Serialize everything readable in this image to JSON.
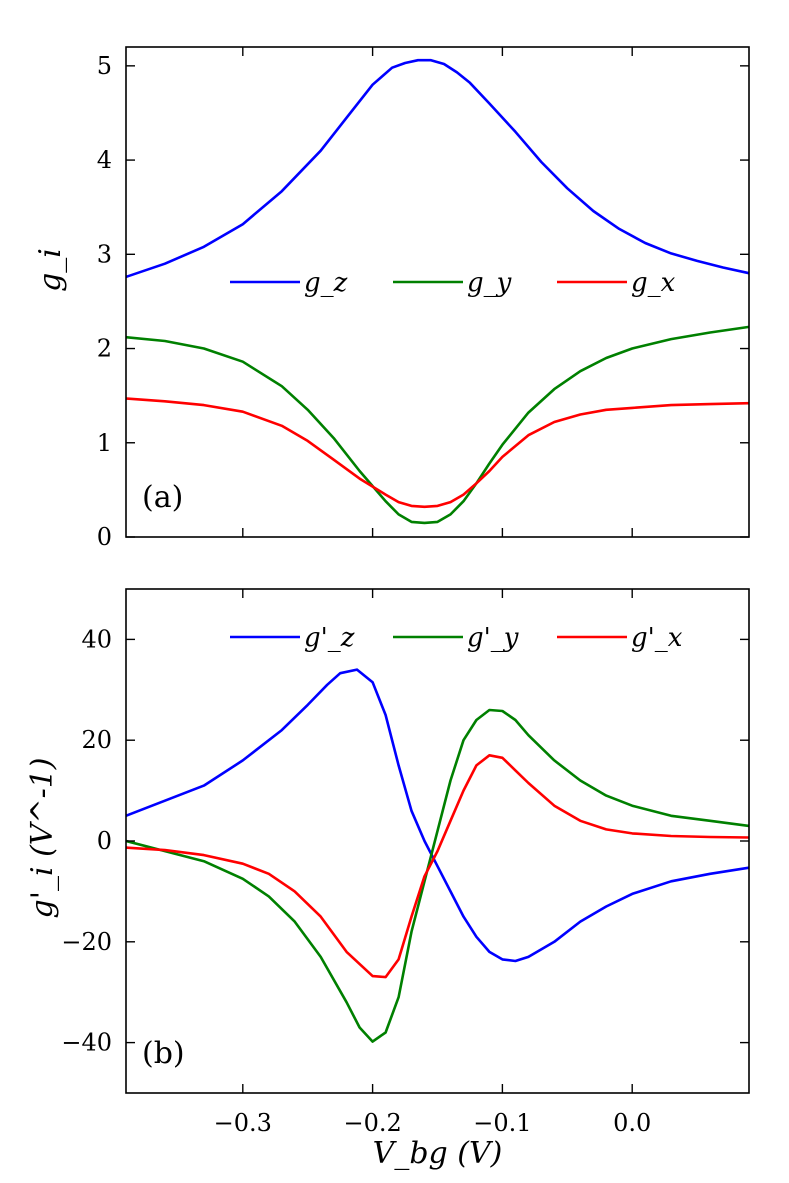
{
  "chart_data": [
    {
      "type": "line",
      "panel_label": "(a)",
      "ylabel": "g_i",
      "xlabel": "",
      "xlim": [
        -0.39,
        0.09
      ],
      "ylim": [
        0,
        5.2
      ],
      "yticks": [
        0,
        1,
        2,
        3,
        4,
        5
      ],
      "ytick_labels": [
        "0",
        "1",
        "2",
        "3",
        "4",
        "5"
      ],
      "xticks": [
        -0.3,
        -0.2,
        -0.1,
        0.0
      ],
      "xtick_labels": [
        "",
        "",
        "",
        ""
      ],
      "grid": false,
      "legend": "upper-center, single row",
      "series": [
        {
          "name": "g_z",
          "color": "#0000ff",
          "x": [
            -0.39,
            -0.36,
            -0.33,
            -0.3,
            -0.27,
            -0.24,
            -0.22,
            -0.2,
            -0.185,
            -0.175,
            -0.165,
            -0.155,
            -0.145,
            -0.135,
            -0.125,
            -0.11,
            -0.09,
            -0.07,
            -0.05,
            -0.03,
            -0.01,
            0.01,
            0.03,
            0.05,
            0.07,
            0.09
          ],
          "y": [
            2.76,
            2.9,
            3.08,
            3.32,
            3.67,
            4.1,
            4.45,
            4.8,
            4.98,
            5.03,
            5.06,
            5.06,
            5.02,
            4.93,
            4.82,
            4.6,
            4.3,
            3.98,
            3.7,
            3.46,
            3.27,
            3.12,
            3.01,
            2.93,
            2.86,
            2.8
          ]
        },
        {
          "name": "g_y",
          "color": "#008000",
          "x": [
            -0.39,
            -0.36,
            -0.33,
            -0.3,
            -0.27,
            -0.25,
            -0.23,
            -0.21,
            -0.19,
            -0.18,
            -0.17,
            -0.16,
            -0.15,
            -0.14,
            -0.13,
            -0.12,
            -0.11,
            -0.1,
            -0.08,
            -0.06,
            -0.04,
            -0.02,
            0.0,
            0.03,
            0.06,
            0.09
          ],
          "y": [
            2.12,
            2.08,
            2.0,
            1.86,
            1.6,
            1.35,
            1.05,
            0.7,
            0.38,
            0.24,
            0.16,
            0.15,
            0.16,
            0.24,
            0.38,
            0.57,
            0.78,
            0.98,
            1.32,
            1.57,
            1.76,
            1.9,
            2.0,
            2.1,
            2.17,
            2.23
          ]
        },
        {
          "name": "g_x",
          "color": "#ff0000",
          "x": [
            -0.39,
            -0.36,
            -0.33,
            -0.3,
            -0.27,
            -0.25,
            -0.23,
            -0.21,
            -0.19,
            -0.18,
            -0.17,
            -0.16,
            -0.15,
            -0.14,
            -0.13,
            -0.12,
            -0.11,
            -0.1,
            -0.08,
            -0.06,
            -0.04,
            -0.02,
            0.0,
            0.03,
            0.06,
            0.09
          ],
          "y": [
            1.47,
            1.44,
            1.4,
            1.33,
            1.18,
            1.02,
            0.82,
            0.62,
            0.45,
            0.37,
            0.33,
            0.32,
            0.33,
            0.37,
            0.45,
            0.57,
            0.7,
            0.85,
            1.08,
            1.22,
            1.3,
            1.35,
            1.37,
            1.4,
            1.41,
            1.42
          ]
        }
      ]
    },
    {
      "type": "line",
      "panel_label": "(b)",
      "ylabel": "g'_i (V^-1)",
      "xlabel": "V_bg (V)",
      "xlim": [
        -0.39,
        0.09
      ],
      "ylim": [
        -50,
        50
      ],
      "yticks": [
        -40,
        -20,
        0,
        20,
        40
      ],
      "ytick_labels": [
        "−40",
        "−20",
        "0",
        "20",
        "40"
      ],
      "xticks": [
        -0.3,
        -0.2,
        -0.1,
        0.0
      ],
      "xtick_labels": [
        "−0.3",
        "−0.2",
        "−0.1",
        "0.0"
      ],
      "grid": false,
      "legend": "upper-center, single row",
      "series": [
        {
          "name": "g'_z",
          "color": "#0000ff",
          "x": [
            -0.39,
            -0.36,
            -0.33,
            -0.3,
            -0.27,
            -0.25,
            -0.235,
            -0.225,
            -0.212,
            -0.2,
            -0.19,
            -0.18,
            -0.17,
            -0.16,
            -0.15,
            -0.14,
            -0.13,
            -0.12,
            -0.11,
            -0.1,
            -0.09,
            -0.08,
            -0.06,
            -0.04,
            -0.02,
            0.0,
            0.03,
            0.06,
            0.09
          ],
          "y": [
            5,
            8,
            11,
            16,
            22,
            27,
            31,
            33.3,
            34,
            31.5,
            25,
            15,
            6,
            0,
            -5,
            -10,
            -15,
            -19,
            -22,
            -23.5,
            -23.8,
            -23,
            -20,
            -16,
            -13,
            -10.5,
            -8,
            -6.5,
            -5.3
          ]
        },
        {
          "name": "g'_y",
          "color": "#008000",
          "x": [
            -0.39,
            -0.36,
            -0.33,
            -0.3,
            -0.28,
            -0.26,
            -0.24,
            -0.22,
            -0.21,
            -0.2,
            -0.19,
            -0.18,
            -0.17,
            -0.16,
            -0.15,
            -0.14,
            -0.13,
            -0.12,
            -0.11,
            -0.1,
            -0.09,
            -0.08,
            -0.06,
            -0.04,
            -0.02,
            0.0,
            0.03,
            0.06,
            0.09
          ],
          "y": [
            0,
            -2,
            -4,
            -7.5,
            -11,
            -16,
            -23,
            -32,
            -37,
            -39.8,
            -38,
            -31,
            -18,
            -8,
            2,
            12,
            20,
            24,
            26,
            25.8,
            24,
            21,
            16,
            12,
            9,
            7,
            5,
            4,
            3
          ]
        },
        {
          "name": "g'_x",
          "color": "#ff0000",
          "x": [
            -0.39,
            -0.36,
            -0.33,
            -0.3,
            -0.28,
            -0.26,
            -0.24,
            -0.22,
            -0.2,
            -0.19,
            -0.18,
            -0.17,
            -0.16,
            -0.15,
            -0.14,
            -0.13,
            -0.12,
            -0.11,
            -0.1,
            -0.09,
            -0.08,
            -0.06,
            -0.04,
            -0.02,
            0.0,
            0.03,
            0.06,
            0.09
          ],
          "y": [
            -1.3,
            -1.8,
            -2.8,
            -4.5,
            -6.5,
            -10,
            -15,
            -22,
            -26.8,
            -27,
            -23.5,
            -15,
            -7,
            -2,
            4,
            10,
            15,
            17,
            16.5,
            14,
            11.5,
            7,
            4,
            2.3,
            1.5,
            1,
            0.8,
            0.7
          ]
        }
      ]
    }
  ]
}
